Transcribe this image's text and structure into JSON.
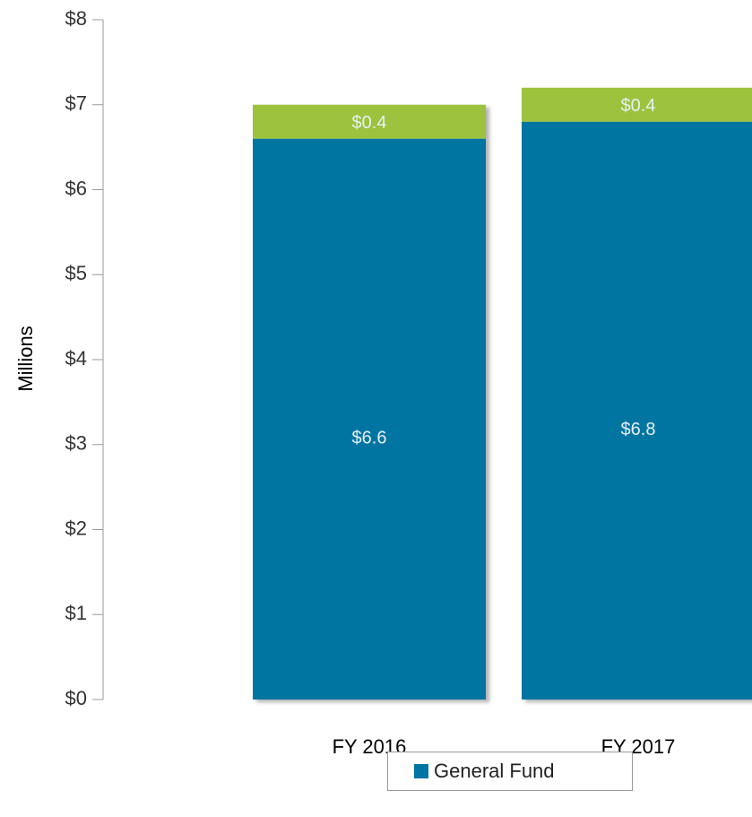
{
  "chart_data": {
    "type": "stacked_bar",
    "y_label": "Millions",
    "categories": [
      "FY 2016",
      "FY 2017"
    ],
    "series": [
      {
        "name": "General Fund",
        "color": "#0074a2",
        "values": [
          6.6,
          6.8
        ],
        "value_labels": [
          "$6.6",
          "$6.8"
        ]
      },
      {
        "color": "#9dc23c",
        "values": [
          0.4,
          0.4
        ],
        "value_labels": [
          "$0.4",
          "$0.4"
        ]
      }
    ],
    "ylim": [
      0,
      8
    ],
    "yticks": [
      {
        "value": 0,
        "label": "$0"
      },
      {
        "value": 1,
        "label": "$1"
      },
      {
        "value": 2,
        "label": "$2"
      },
      {
        "value": 3,
        "label": "$3"
      },
      {
        "value": 4,
        "label": "$4"
      },
      {
        "value": 5,
        "label": "$5"
      },
      {
        "value": 6,
        "label": "$6"
      },
      {
        "value": 7,
        "label": "$7"
      },
      {
        "value": 8,
        "label": "$8"
      }
    ],
    "legend": "bottom"
  }
}
